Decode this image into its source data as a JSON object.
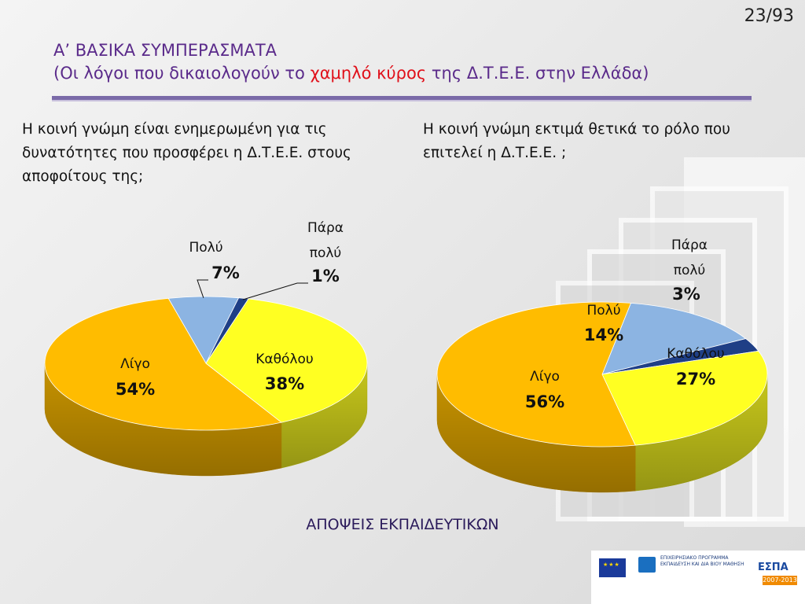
{
  "page_number": "23/93",
  "title": {
    "line1": "Α’ ΒΑΣΙΚΑ ΣΥΜΠΕΡΑΣΜΑΤΑ",
    "line2_prefix": "(Οι λόγοι που δικαιολογούν το ",
    "line2_highlight": "χαμηλό κύρος",
    "line2_suffix": " της Δ.Τ.Ε.Ε. στην Ελλάδα)"
  },
  "questions": {
    "left": "Η κοινή γνώμη είναι ενημερωμένη για τις δυνατότητες που προσφέρει η Δ.Τ.Ε.Ε. στους αποφοίτους της;",
    "right": "Η κοινή γνώμη εκτιμά θετικά το ρόλο που επιτελεί η Δ.Τ.Ε.Ε. ;"
  },
  "footer_label": "ΑΠΟΨΕΙΣ ΕΚΠΑΙΔΕΥΤΙΚΩΝ",
  "logos": {
    "program_line1": "ΕΠΙΧΕΙΡΗΣΙΑΚΟ ΠΡΟΓΡΑΜΜΑ",
    "program_line2": "ΕΚΠΑΙΔΕΥΣΗ ΚΑΙ ΔΙΑ ΒΙΟΥ ΜΑΘΗΣΗ",
    "espa": "ΕΣΠΑ",
    "espa_years": "2007-2013"
  },
  "colors": {
    "Πολύ": "#8cb4e2",
    "Πάρα πολύ": "#1f3f86",
    "Καθόλου": "#ffff22",
    "Λίγο": "#ffbc00"
  },
  "chart_data": [
    {
      "type": "pie",
      "title": "",
      "slices": [
        {
          "label": "Πολύ",
          "value": 7
        },
        {
          "label": "Πάρα πολύ",
          "value": 1
        },
        {
          "label": "Καθόλου",
          "value": 38
        },
        {
          "label": "Λίγο",
          "value": 54
        }
      ]
    },
    {
      "type": "pie",
      "title": "",
      "slices": [
        {
          "label": "Πολύ",
          "value": 14
        },
        {
          "label": "Πάρα πολύ",
          "value": 3
        },
        {
          "label": "Καθόλου",
          "value": 27
        },
        {
          "label": "Λίγο",
          "value": 56
        }
      ]
    }
  ]
}
